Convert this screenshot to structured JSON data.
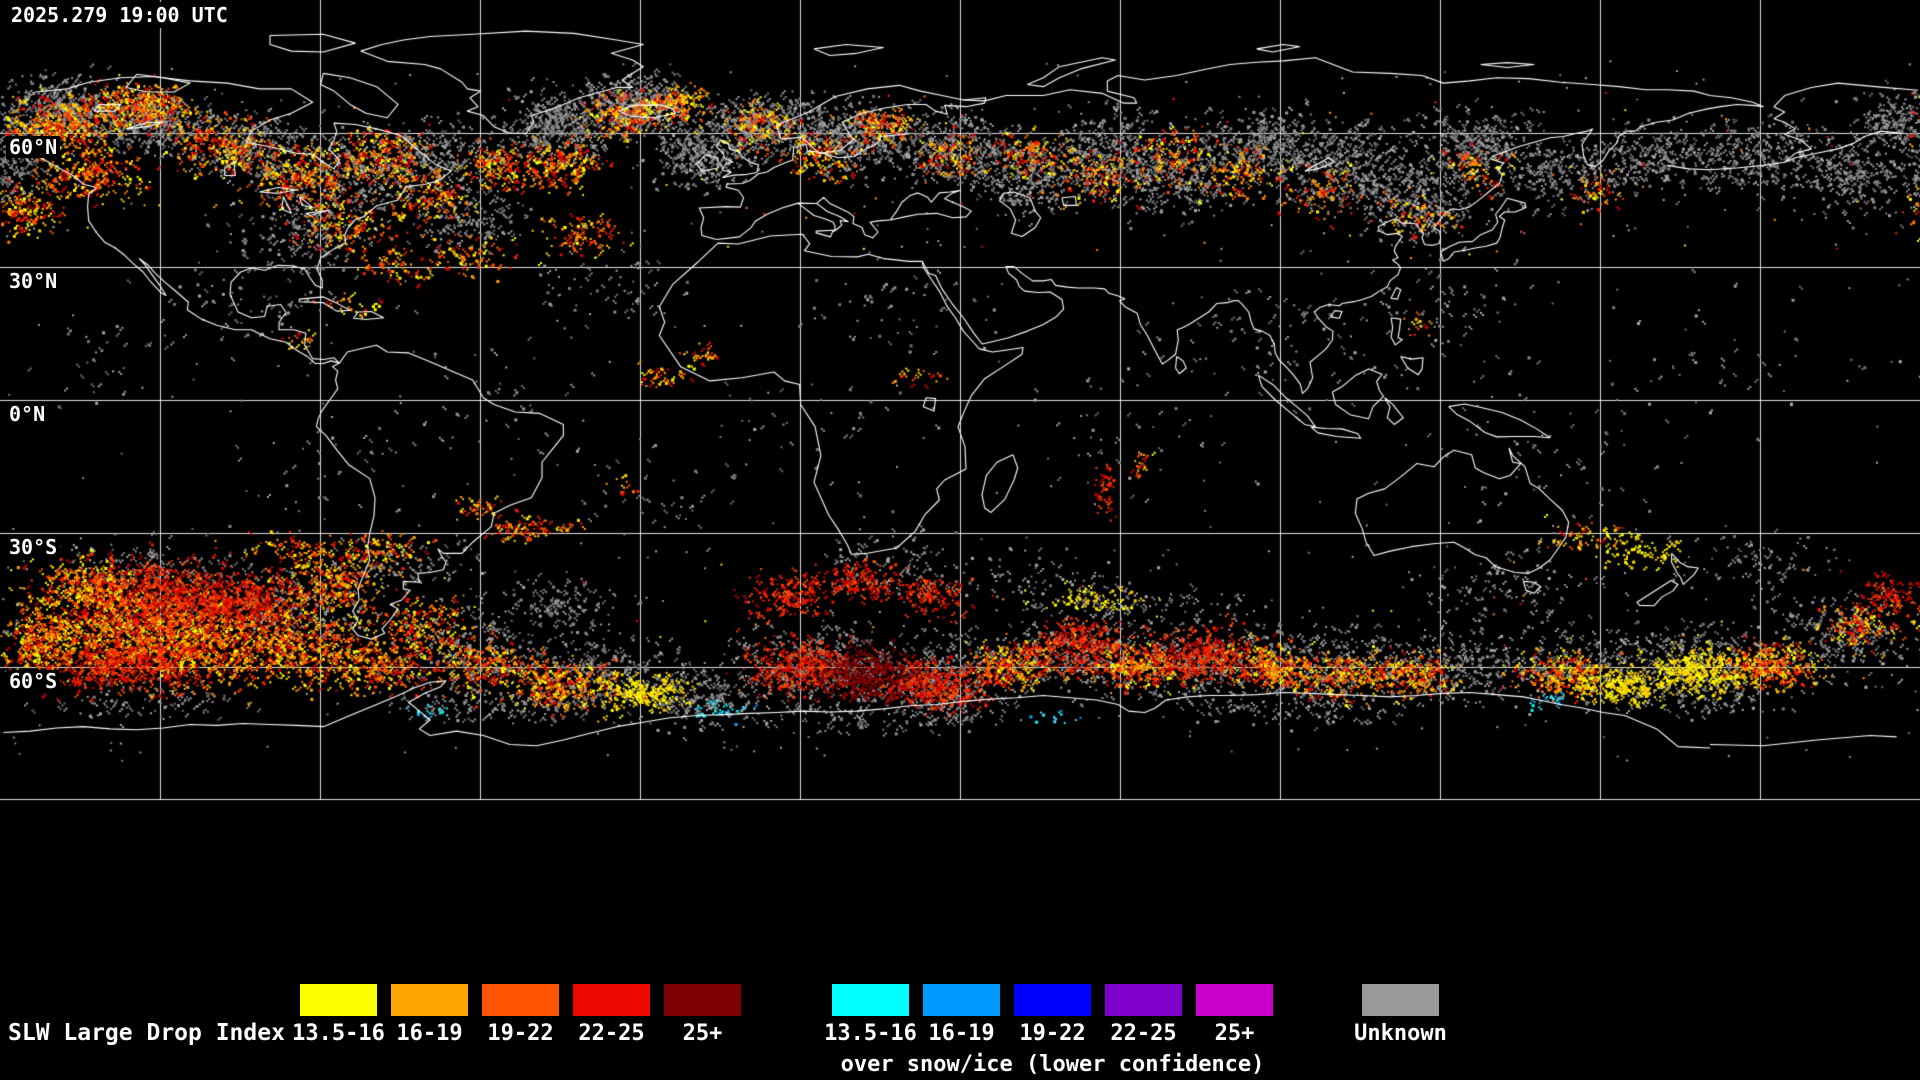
{
  "header": {
    "timestamp": "2025.279 19:00 UTC"
  },
  "map": {
    "latitude_labels": [
      {
        "text": "60°N",
        "lat": 60
      },
      {
        "text": "30°N",
        "lat": 30
      },
      {
        "text": "0°N",
        "lat": 0
      },
      {
        "text": "30°S",
        "lat": -30
      },
      {
        "text": "60°S",
        "lat": -60
      }
    ],
    "colors": {
      "background": "#000000",
      "coastline": "#ffffff",
      "gridline": "rgba(255,255,255,0.88)",
      "unknown_speckle": "#909090"
    }
  },
  "legend": {
    "title": "SLW Large Drop Index",
    "standard_bins": [
      {
        "label": "13.5-16",
        "color": "#ffff00"
      },
      {
        "label": "16-19",
        "color": "#ffa500"
      },
      {
        "label": "19-22",
        "color": "#ff5500"
      },
      {
        "label": "22-25",
        "color": "#ee0800"
      },
      {
        "label": "25+",
        "color": "#7f0000"
      }
    ],
    "snow_ice_bins": [
      {
        "label": "13.5-16",
        "color": "#00ffff"
      },
      {
        "label": "16-19",
        "color": "#0099ff"
      },
      {
        "label": "19-22",
        "color": "#0000ff"
      },
      {
        "label": "22-25",
        "color": "#7f00cc"
      },
      {
        "label": "25+",
        "color": "#cc00cc"
      }
    ],
    "snow_ice_caption": "over snow/ice (lower confidence)",
    "unknown": {
      "label": "Unknown",
      "color": "#999999"
    }
  }
}
